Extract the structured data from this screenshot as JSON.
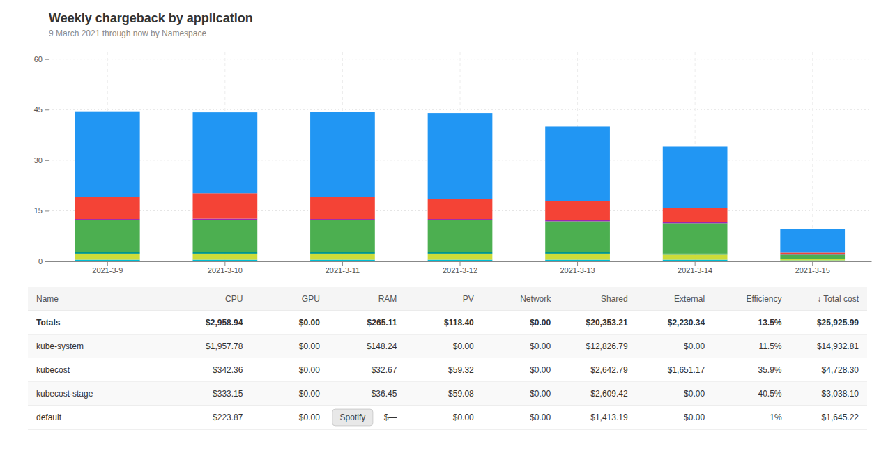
{
  "chart_data": {
    "type": "bar",
    "stacked": true,
    "title": "Weekly chargeback by application",
    "subtitle": "9 March 2021 through now by Namespace",
    "categories": [
      "2021-3-9",
      "2021-3-10",
      "2021-3-11",
      "2021-3-12",
      "2021-3-13",
      "2021-3-14",
      "2021-3-15"
    ],
    "series": [
      {
        "color": "#00bcd4",
        "values": [
          0.5,
          0.5,
          0.5,
          0.5,
          0.5,
          0.5,
          0.3
        ]
      },
      {
        "color": "#cddc39",
        "values": [
          1.8,
          1.8,
          1.8,
          1.8,
          1.8,
          1.5,
          0.4
        ]
      },
      {
        "color": "#009688",
        "values": [
          0.4,
          0.4,
          0.4,
          0.4,
          0.4,
          0.3,
          0.1
        ]
      },
      {
        "color": "#4caf50",
        "values": [
          9.5,
          9.5,
          9.5,
          9.5,
          9.2,
          9.0,
          1.2
        ]
      },
      {
        "color": "#9c27b0",
        "values": [
          0.4,
          0.5,
          0.4,
          0.4,
          0.4,
          0.3,
          0.1
        ]
      },
      {
        "color": "#f44336",
        "values": [
          6.5,
          7.5,
          6.5,
          6.0,
          5.5,
          4.2,
          0.5
        ]
      },
      {
        "color": "#2196f3",
        "values": [
          25.4,
          24.0,
          25.3,
          25.4,
          22.2,
          18.2,
          7.0
        ]
      }
    ],
    "ylim": [
      0,
      62
    ],
    "yticks": [
      0,
      15,
      30,
      45,
      60
    ],
    "grid": true,
    "table": {
      "header": [
        "Name",
        "CPU",
        "GPU",
        "RAM",
        "PV",
        "Network",
        "Shared",
        "External",
        "Efficiency",
        "↓ Total cost"
      ],
      "rows": [
        [
          "Totals",
          "$2,958.94",
          "$0.00",
          "$265.11",
          "$118.40",
          "$0.00",
          "$20,353.21",
          "$2,230.34",
          "13.5%",
          "$25,925.99"
        ],
        [
          "kube-system",
          "$1,957.78",
          "$0.00",
          "$148.24",
          "$0.00",
          "$0.00",
          "$12,826.79",
          "$0.00",
          "11.5%",
          "$14,932.81"
        ],
        [
          "kubecost",
          "$342.36",
          "$0.00",
          "$32.67",
          "$59.32",
          "$0.00",
          "$2,642.79",
          "$1,651.17",
          "35.9%",
          "$4,728.30"
        ],
        [
          "kubecost-stage",
          "$333.15",
          "$0.00",
          "$36.45",
          "$59.08",
          "$0.00",
          "$2,609.42",
          "$0.00",
          "40.5%",
          "$3,038.10"
        ],
        [
          "default",
          "$223.87",
          "$0.00",
          "$—",
          "$0.00",
          "$0.00",
          "$1,413.19",
          "$0.00",
          "1%",
          "$1,645.22"
        ]
      ]
    },
    "annotations": [
      "Spotify"
    ]
  }
}
